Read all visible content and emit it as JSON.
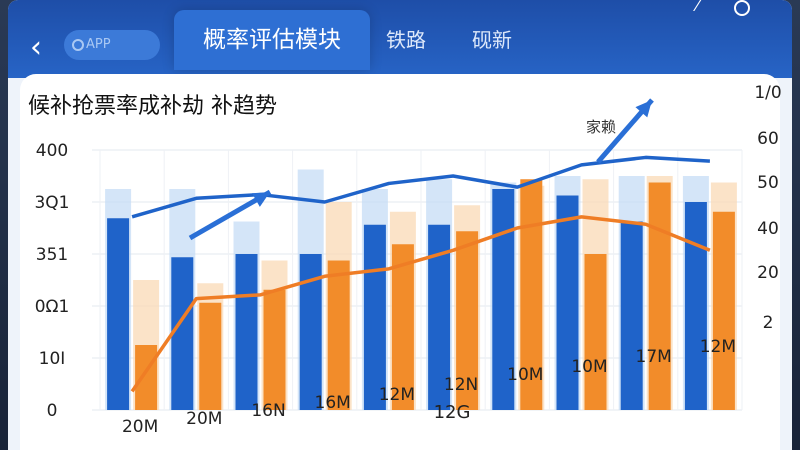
{
  "header": {
    "back_label": "‹",
    "app_label": "APP",
    "tabs": [
      {
        "label": "概率评估模块",
        "active": true
      },
      {
        "label": "铁路"
      },
      {
        "label": "砚新"
      }
    ],
    "top_right_icon": "expand-icon"
  },
  "chart_data": {
    "type": "bar",
    "title": "候补抢票率成补劫 补趋势",
    "xlabel": "12G",
    "categories": [
      "20M",
      "20M",
      "16N",
      "16M",
      "12M",
      "12N",
      "10M",
      "10M",
      "17M",
      "12M"
    ],
    "left_axis_ticks": [
      "400",
      "3Q1",
      "351",
      "0Ω1",
      "10I",
      "0"
    ],
    "right_axis_ticks": [
      "1/0",
      "60",
      "50",
      "40",
      "20",
      "2"
    ],
    "ylim_left": [
      0,
      400
    ],
    "ylim_right": [
      0,
      70
    ],
    "series": [
      {
        "role": "blue-bars",
        "values": [
          295,
          235,
          240,
          240,
          285,
          285,
          340,
          330,
          290,
          320
        ]
      },
      {
        "role": "blue-shadow-bars",
        "values": [
          340,
          340,
          290,
          370,
          340,
          355,
          350,
          360,
          360,
          360
        ]
      },
      {
        "role": "orange-bars",
        "values": [
          100,
          165,
          185,
          230,
          255,
          275,
          355,
          240,
          350,
          305
        ]
      },
      {
        "role": "orange-shadow-bars",
        "values": [
          200,
          195,
          230,
          320,
          305,
          315,
          345,
          355,
          360,
          350
        ]
      },
      {
        "role": "orange-line",
        "values": [
          5,
          30,
          31,
          36,
          38,
          43,
          49,
          52,
          50,
          43
        ]
      },
      {
        "role": "blue-line",
        "values": [
          52,
          57,
          58,
          56,
          61,
          63,
          60,
          66,
          68,
          67
        ]
      }
    ],
    "annotation": "家赖",
    "colors": {
      "blue": "#1f63c9",
      "blue_light": "#c6dcf6",
      "orange": "#f28c2a",
      "orange_light": "#f9d9b6",
      "line_orange": "#ef7d25",
      "line_blue": "#1f63c9"
    },
    "grid": true
  }
}
